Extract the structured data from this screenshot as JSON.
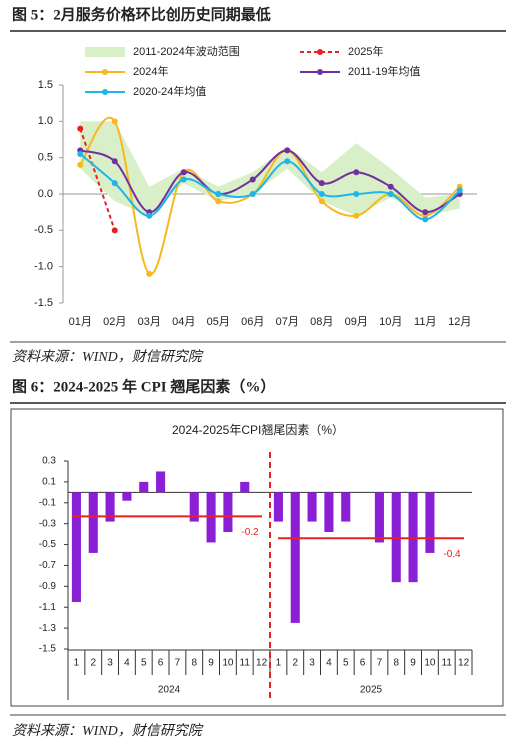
{
  "chart_data": [
    {
      "type": "line",
      "figure_title": "图 5：2月服务价格环比创历史同期最低",
      "source": "资料来源：WIND，财信研究院",
      "categories": [
        "01月",
        "02月",
        "03月",
        "04月",
        "05月",
        "06月",
        "07月",
        "08月",
        "09月",
        "10月",
        "11月",
        "12月"
      ],
      "ylim": [
        -1.5,
        1.5
      ],
      "yticks": [
        1.5,
        {
          "value": 1,
          "label": "1.0"
        },
        0.5,
        {
          "value": 0,
          "label": "0.0"
        },
        -0.5,
        {
          "value": -1,
          "label": "-1.0"
        },
        -1.5
      ],
      "range": {
        "name": "2011-2024年波动范围",
        "color": "#d9efc8",
        "upper": [
          1.0,
          1.0,
          0.1,
          0.35,
          0.1,
          0.3,
          0.65,
          0.3,
          0.7,
          0.35,
          -0.05,
          0.0
        ],
        "lower": [
          0.35,
          -0.1,
          -0.3,
          0.15,
          -0.1,
          0.0,
          0.35,
          -0.1,
          -0.3,
          -0.05,
          -0.3,
          -0.2
        ]
      },
      "series": [
        {
          "name": "2025年",
          "color": "#e8201f",
          "dashed": true,
          "values": [
            0.9,
            -0.5,
            null,
            null,
            null,
            null,
            null,
            null,
            null,
            null,
            null,
            null
          ]
        },
        {
          "name": "2024年",
          "color": "#f7b81e",
          "values": [
            0.4,
            1.0,
            -1.1,
            0.3,
            -0.1,
            0.0,
            0.6,
            -0.1,
            -0.3,
            0.0,
            -0.3,
            0.1
          ]
        },
        {
          "name": "2011-19年均值",
          "color": "#7030a0",
          "values": [
            0.6,
            0.45,
            -0.25,
            0.3,
            0.0,
            0.2,
            0.6,
            0.15,
            0.3,
            0.1,
            -0.25,
            0.0
          ]
        },
        {
          "name": "2020-24年均值",
          "color": "#1fb5e8",
          "values": [
            0.55,
            0.15,
            -0.3,
            0.2,
            0.0,
            0.0,
            0.45,
            0.0,
            0.0,
            0.0,
            -0.35,
            0.05
          ]
        }
      ]
    },
    {
      "type": "bar",
      "figure_title": "图 6：2024-2025 年 CPI 翘尾因素（%）",
      "title": "2024-2025年CPI翘尾因素（%）",
      "source": "资料来源：WIND，财信研究院",
      "groups": [
        "2024",
        "2025"
      ],
      "categories": [
        "1",
        "2",
        "3",
        "4",
        "5",
        "6",
        "7",
        "8",
        "9",
        "10",
        "11",
        "12",
        "1",
        "2",
        "3",
        "4",
        "5",
        "6",
        "7",
        "8",
        "9",
        "10",
        "11",
        "12"
      ],
      "values": [
        -1.05,
        -0.58,
        -0.28,
        -0.08,
        0.1,
        0.2,
        0,
        -0.28,
        -0.48,
        -0.38,
        0.1,
        0,
        -0.28,
        -1.25,
        -0.28,
        -0.38,
        -0.28,
        0,
        -0.48,
        -0.86,
        -0.86,
        -0.58,
        0,
        0
      ],
      "color": "#8a1fd6",
      "ylim": [
        -1.5,
        0.3
      ],
      "yticks": [
        0.3,
        0.1,
        -0.1,
        -0.3,
        -0.5,
        -0.7,
        -0.9,
        -1.1,
        -1.3,
        -1.5
      ],
      "averages": [
        {
          "value": -0.23,
          "label": "-0.2"
        },
        {
          "value": -0.44,
          "label": "-0.4"
        }
      ],
      "average_color": "#e8201f"
    }
  ]
}
